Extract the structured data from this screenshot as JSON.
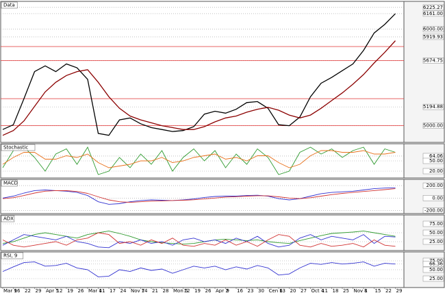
{
  "chart_data": [
    {
      "type": "line",
      "title": "Data",
      "ylim": [
        4827,
        6288
      ],
      "yticks": [
        {
          "value": 6225.27,
          "label": "6225.27"
        },
        {
          "value": 6161,
          "label": "6161.00"
        },
        {
          "value": 6000,
          "label": "6000.00"
        },
        {
          "value": 5919.93,
          "label": "5919.93"
        },
        {
          "value": 5674.75,
          "label": "5674.75"
        },
        {
          "value": 5194.88,
          "label": "5194.88"
        },
        {
          "value": 5000,
          "label": "5000.00"
        }
      ],
      "levels": [
        5820,
        5674.75,
        5280,
        5000
      ],
      "level_color": "#e03030",
      "series": [
        {
          "color": "#000000",
          "values": [
            4960,
            5010,
            5280,
            5560,
            5620,
            5560,
            5640,
            5600,
            5480,
            4920,
            4900,
            5060,
            5080,
            5020,
            4980,
            4960,
            4940,
            4950,
            4990,
            5120,
            5150,
            5130,
            5170,
            5240,
            5250,
            5180,
            5010,
            5000,
            5090,
            5300,
            5440,
            5500,
            5570,
            5640,
            5780,
            5960,
            6050,
            6161
          ]
        },
        {
          "color": "#8b0000",
          "values": [
            4900,
            4950,
            5050,
            5200,
            5350,
            5450,
            5520,
            5560,
            5580,
            5450,
            5300,
            5180,
            5100,
            5060,
            5030,
            5000,
            4980,
            4960,
            4960,
            4990,
            5040,
            5080,
            5100,
            5140,
            5170,
            5190,
            5160,
            5110,
            5080,
            5110,
            5180,
            5260,
            5340,
            5430,
            5530,
            5650,
            5760,
            5880
          ]
        }
      ]
    },
    {
      "type": "line",
      "title": "Stochastic",
      "ylim": [
        0,
        100
      ],
      "yticks": [
        {
          "value": 64.06,
          "label": "64.06"
        },
        {
          "value": 50,
          "label": "50.00"
        },
        {
          "value": 20,
          "label": "20.00"
        }
      ],
      "series": [
        {
          "color": "#2e9a2e",
          "values": [
            30,
            80,
            90,
            60,
            20,
            70,
            85,
            40,
            90,
            10,
            20,
            60,
            30,
            70,
            40,
            80,
            20,
            60,
            85,
            50,
            80,
            30,
            70,
            40,
            85,
            60,
            10,
            20,
            75,
            90,
            70,
            85,
            60,
            80,
            90,
            40,
            85,
            75
          ]
        },
        {
          "color": "#e8701a",
          "values": [
            40,
            60,
            75,
            75,
            55,
            55,
            65,
            60,
            70,
            45,
            30,
            35,
            40,
            50,
            50,
            60,
            45,
            50,
            60,
            65,
            70,
            55,
            60,
            50,
            65,
            65,
            45,
            30,
            40,
            65,
            80,
            80,
            75,
            75,
            80,
            70,
            70,
            75
          ]
        }
      ]
    },
    {
      "type": "line",
      "title": "MACD",
      "ylim": [
        -250,
        300
      ],
      "yticks": [
        {
          "value": 200,
          "label": "200.00"
        },
        {
          "value": 0,
          "label": "0.00"
        },
        {
          "value": -200,
          "label": "-200.00"
        }
      ],
      "series": [
        {
          "color": "#3030d0",
          "values": [
            0,
            30,
            80,
            120,
            130,
            120,
            110,
            90,
            40,
            -60,
            -100,
            -90,
            -60,
            -40,
            -30,
            -35,
            -40,
            -30,
            -15,
            10,
            25,
            30,
            30,
            40,
            45,
            30,
            -10,
            -30,
            -10,
            30,
            70,
            90,
            100,
            110,
            130,
            150,
            160,
            165
          ]
        },
        {
          "color": "#d03030",
          "values": [
            -10,
            5,
            40,
            80,
            110,
            120,
            118,
            105,
            75,
            20,
            -30,
            -60,
            -70,
            -60,
            -50,
            -45,
            -40,
            -35,
            -28,
            -15,
            0,
            15,
            22,
            30,
            37,
            35,
            20,
            0,
            -10,
            5,
            30,
            55,
            75,
            90,
            105,
            120,
            135,
            150
          ]
        }
      ]
    },
    {
      "type": "line",
      "title": "ADX",
      "ylim": [
        0,
        100
      ],
      "yticks": [
        {
          "value": 75,
          "label": "75.00"
        },
        {
          "value": 50,
          "label": "50.00"
        },
        {
          "value": 25,
          "label": "25.00"
        }
      ],
      "series": [
        {
          "color": "#2e9a2e",
          "values": [
            20,
            25,
            35,
            45,
            50,
            45,
            40,
            35,
            45,
            50,
            55,
            48,
            40,
            30,
            25,
            22,
            20,
            18,
            20,
            25,
            30,
            32,
            30,
            28,
            30,
            25,
            22,
            20,
            28,
            35,
            42,
            48,
            50,
            52,
            55,
            50,
            45,
            40
          ]
        },
        {
          "color": "#3030d0",
          "values": [
            15,
            30,
            45,
            40,
            35,
            30,
            40,
            25,
            20,
            10,
            8,
            25,
            20,
            30,
            20,
            25,
            15,
            30,
            35,
            25,
            30,
            20,
            35,
            25,
            40,
            20,
            10,
            15,
            35,
            45,
            30,
            40,
            35,
            30,
            45,
            20,
            40,
            38
          ]
        },
        {
          "color": "#d03030",
          "values": [
            30,
            15,
            10,
            15,
            20,
            25,
            15,
            30,
            35,
            50,
            45,
            20,
            25,
            15,
            30,
            20,
            35,
            15,
            12,
            20,
            15,
            30,
            15,
            25,
            12,
            30,
            45,
            40,
            15,
            10,
            20,
            12,
            15,
            20,
            10,
            30,
            15,
            12
          ]
        }
      ]
    },
    {
      "type": "line",
      "title": "RSI, 9",
      "ylim": [
        0,
        100
      ],
      "yticks": [
        {
          "value": 75,
          "label": "75.00"
        },
        {
          "value": 66.36,
          "label": "66.36"
        },
        {
          "value": 50,
          "label": "50.00"
        },
        {
          "value": 25,
          "label": "25.00"
        }
      ],
      "categories": [
        "Mar 9",
        "16",
        "22",
        "29",
        "Apr 5",
        "12",
        "19",
        "26",
        "Mar 4",
        "11",
        "17",
        "24",
        "Nov 7",
        "14",
        "21",
        "28",
        "Mon 5",
        "12",
        "19",
        "26",
        "Apr 2",
        "9",
        "16",
        "23",
        "30",
        "Cen 6",
        "13",
        "20",
        "27",
        "Oct 4",
        "11",
        "18",
        "25",
        "Nov 1",
        "8",
        "15",
        "22",
        "29"
      ],
      "series": [
        {
          "color": "#3030d0",
          "values": [
            45,
            58,
            70,
            72,
            60,
            62,
            68,
            55,
            50,
            30,
            32,
            50,
            45,
            55,
            48,
            52,
            40,
            50,
            60,
            55,
            60,
            50,
            58,
            52,
            62,
            55,
            35,
            38,
            55,
            68,
            65,
            70,
            66,
            68,
            72,
            60,
            68,
            66
          ]
        }
      ]
    }
  ]
}
